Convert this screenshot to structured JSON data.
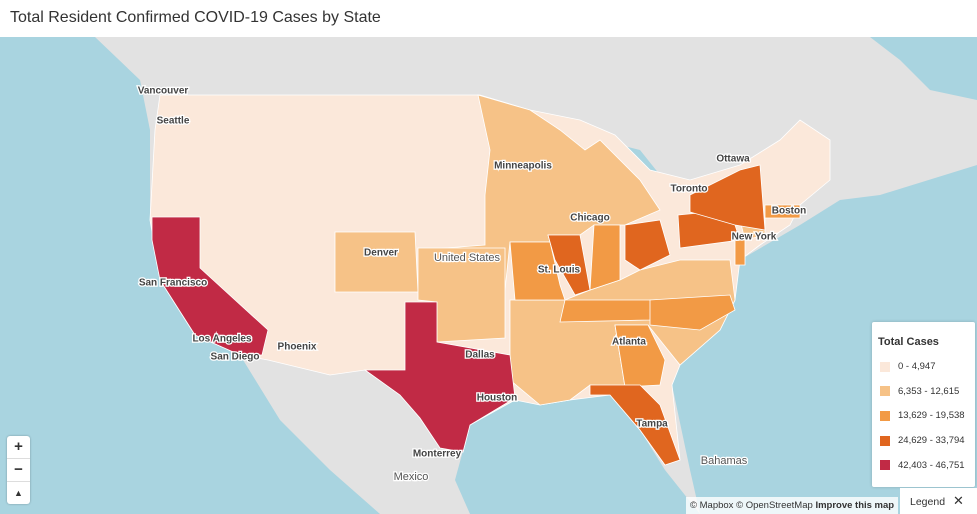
{
  "header": {
    "title": "Total Resident Confirmed COVID-19 Cases by State"
  },
  "map": {
    "labels": [
      "Vancouver",
      "Seattle",
      "Minneapolis",
      "Ottawa",
      "Toronto",
      "Chicago",
      "Boston",
      "New York",
      "Denver",
      "United States",
      "St. Louis",
      "San Francisco",
      "Los Angeles",
      "San Diego",
      "Phoenix",
      "Atlanta",
      "Dallas",
      "Houston",
      "Tampa",
      "Monterrey",
      "Bahamas",
      "Mexico"
    ]
  },
  "legend": {
    "title": "Total Cases",
    "items": [
      {
        "label": "0 - 4,947",
        "color": "#fbe8da"
      },
      {
        "label": "6,353 - 12,615",
        "color": "#f6c287"
      },
      {
        "label": "13,629 - 19,538",
        "color": "#f29a45"
      },
      {
        "label": "24,629 - 33,794",
        "color": "#e0661f"
      },
      {
        "label": "42,403 - 46,751",
        "color": "#c12a45"
      }
    ]
  },
  "controls": {
    "zoom_in": "+",
    "zoom_out": "−",
    "compass": "▲"
  },
  "attribution": {
    "mapbox": "© Mapbox",
    "osm": "© OpenStreetMap",
    "improve": "Improve this map"
  },
  "legend_toggle": {
    "label": "Legend",
    "close": "✕"
  }
}
